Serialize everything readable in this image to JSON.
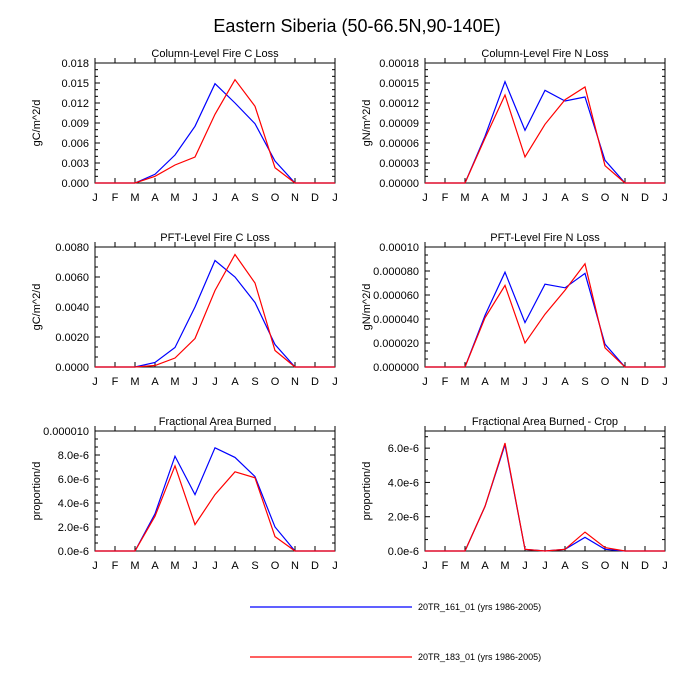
{
  "page_title": "Eastern Siberia (50-66.5N,90-140E)",
  "months": [
    "J",
    "F",
    "M",
    "A",
    "M",
    "J",
    "J",
    "A",
    "S",
    "O",
    "N",
    "D",
    "J"
  ],
  "colors": {
    "series_1": "#0000ff",
    "series_2": "#ff0000"
  },
  "legend": [
    {
      "label": "20TR_161_01 (yrs 1986-2005)",
      "color": "#0000ff"
    },
    {
      "label": "20TR_183_01 (yrs 1986-2005)",
      "color": "#ff0000"
    }
  ],
  "chart_data": [
    {
      "type": "line",
      "title": "Column-Level Fire C Loss",
      "ylabel": "gC/m^2/d",
      "ylim": [
        0,
        0.018
      ],
      "yticks": [
        0,
        0.003,
        0.006,
        0.009,
        0.012,
        0.015,
        0.018
      ],
      "ytick_labels": [
        "0.000",
        "0.003",
        "0.006",
        "0.009",
        "0.012",
        "0.015",
        "0.018"
      ],
      "series": [
        {
          "values": [
            0,
            0,
            0,
            0.0013,
            0.0042,
            0.0085,
            0.0149,
            0.012,
            0.0089,
            0.0033,
            0,
            0,
            0
          ]
        },
        {
          "values": [
            0,
            0,
            0,
            0.001,
            0.0027,
            0.0039,
            0.0103,
            0.0155,
            0.0115,
            0.0023,
            0,
            0,
            0
          ]
        }
      ]
    },
    {
      "type": "line",
      "title": "Column-Level Fire N Loss",
      "ylabel": "gN/m^2/d",
      "ylim": [
        0,
        0.00018
      ],
      "yticks": [
        0,
        3e-05,
        6e-05,
        9e-05,
        0.00012,
        0.00015,
        0.00018
      ],
      "ytick_labels": [
        "0.00000",
        "0.00003",
        "0.00006",
        "0.00009",
        "0.00012",
        "0.00015",
        "0.00018"
      ],
      "series": [
        {
          "values": [
            0,
            0,
            0,
            7e-05,
            0.000152,
            7.9e-05,
            0.000139,
            0.000123,
            0.000129,
            3.4e-05,
            0,
            0,
            0
          ]
        },
        {
          "values": [
            0,
            0,
            0,
            6.7e-05,
            0.000132,
            3.9e-05,
            8.8e-05,
            0.000125,
            0.000144,
            2.6e-05,
            0,
            0,
            0
          ]
        }
      ]
    },
    {
      "type": "line",
      "title": "PFT-Level Fire C Loss",
      "ylabel": "gC/m^2/d",
      "ylim": [
        0,
        0.008
      ],
      "yticks": [
        0,
        0.002,
        0.004,
        0.006,
        0.008
      ],
      "ytick_labels": [
        "0.0000",
        "0.0020",
        "0.0040",
        "0.0060",
        "0.0080"
      ],
      "series": [
        {
          "values": [
            0,
            0,
            0,
            0.0003,
            0.0013,
            0.004,
            0.0071,
            0.006,
            0.0043,
            0.0015,
            0,
            0,
            0
          ]
        },
        {
          "values": [
            0,
            0,
            0,
            0.0001,
            0.0006,
            0.0019,
            0.0051,
            0.0075,
            0.0056,
            0.0011,
            0,
            0,
            0
          ]
        }
      ]
    },
    {
      "type": "line",
      "title": "PFT-Level Fire N Loss",
      "ylabel": "gN/m^2/d",
      "ylim": [
        0,
        0.0001
      ],
      "yticks": [
        0,
        2e-05,
        4e-05,
        6e-05,
        8e-05,
        0.0001
      ],
      "ytick_labels": [
        "0.000000",
        "0.000020",
        "0.000040",
        "0.000060",
        "0.000080",
        "0.00010"
      ],
      "series": [
        {
          "values": [
            0,
            0,
            0,
            4.3e-05,
            7.9e-05,
            3.7e-05,
            6.9e-05,
            6.6e-05,
            7.8e-05,
            1.9e-05,
            0,
            0,
            0
          ]
        },
        {
          "values": [
            0,
            0,
            0,
            4.1e-05,
            6.8e-05,
            2e-05,
            4.4e-05,
            6.4e-05,
            8.6e-05,
            1.6e-05,
            0,
            0,
            0
          ]
        }
      ]
    },
    {
      "type": "line",
      "title": "Fractional Area Burned",
      "ylabel": "proportion/d",
      "ylim": [
        0,
        1e-05
      ],
      "yticks": [
        0,
        2e-06,
        4e-06,
        6e-06,
        8e-06,
        1e-05
      ],
      "ytick_labels": [
        "0.0e-6",
        "2.0e-6",
        "4.0e-6",
        "6.0e-6",
        "8.0e-6",
        "0.000010"
      ],
      "series": [
        {
          "values": [
            0,
            0,
            0,
            3.1e-06,
            7.9e-06,
            4.7e-06,
            8.6e-06,
            7.8e-06,
            6.2e-06,
            2e-06,
            0,
            0,
            0
          ]
        },
        {
          "values": [
            0,
            0,
            0,
            2.9e-06,
            7.1e-06,
            2.2e-06,
            4.7e-06,
            6.6e-06,
            6.1e-06,
            1.2e-06,
            0,
            0,
            0
          ]
        }
      ]
    },
    {
      "type": "line",
      "title": "Fractional Area Burned - Crop",
      "ylabel": "proportion/d",
      "ylim": [
        0,
        7e-06
      ],
      "yticks": [
        0,
        2e-06,
        4e-06,
        6e-06
      ],
      "ytick_labels": [
        "0.0e-6",
        "2.0e-6",
        "4.0e-6",
        "6.0e-6"
      ],
      "series": [
        {
          "values": [
            0,
            0,
            0,
            2.6e-06,
            6.2e-06,
            1e-07,
            0,
            1e-07,
            8e-07,
            1e-07,
            0,
            0,
            0
          ]
        },
        {
          "values": [
            0,
            0,
            0,
            2.6e-06,
            6.3e-06,
            1e-07,
            0,
            1e-07,
            1.1e-06,
            2e-07,
            0,
            0,
            0
          ]
        }
      ]
    }
  ]
}
